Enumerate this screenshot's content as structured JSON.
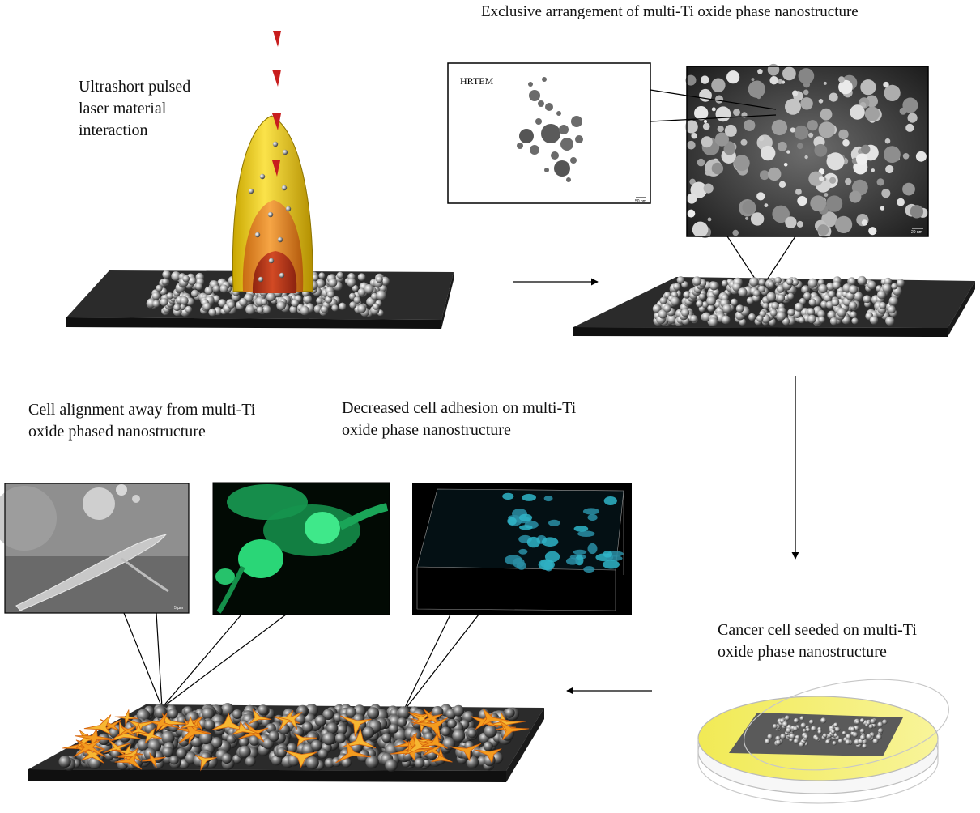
{
  "labels": {
    "laser": "Ultrashort pulsed\nlaser material\ninteraction",
    "arrangement": "Exclusive arrangement of multi-Ti oxide phase nanostructure",
    "hrtem": "HRTEM",
    "scale_small": "50 nm",
    "scale_large": "20 nm",
    "cell_alignment": "Cell alignment away from multi-Ti\noxide phased nanostructure",
    "decreased_adhesion": "Decreased cell adhesion on multi-Ti\noxide phase nanostructure",
    "cancer_cell": "Cancer cell seeded on multi-Ti\noxide phase nanostructure",
    "sem_scale": "5 µm"
  },
  "colors": {
    "substrate": "#2b2b2b",
    "plume_outer": "#f2d31a",
    "plume_mid": "#e88a1e",
    "plume_inner": "#b5361a",
    "laser_drop": "#c81e1e",
    "cell_fill": "#f39c1f",
    "fluor_green": "#1fd36b",
    "fluor_cyan": "#2fb5c8",
    "dish_yellow": "#f4ee6a"
  },
  "arrows": [
    "right",
    "down",
    "left"
  ],
  "icons": [
    "laser-pulse-icon",
    "nanoparticle-icon"
  ]
}
